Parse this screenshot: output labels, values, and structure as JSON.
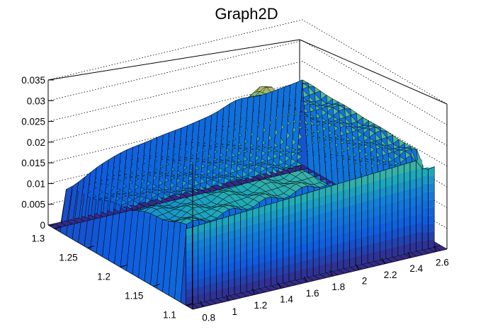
{
  "chart_data": {
    "type": "surface",
    "title": "Graph2D",
    "xlabel": "",
    "ylabel": "",
    "zlabel": "",
    "xlim": [
      0.72,
      2.68
    ],
    "ylim": [
      1.09,
      1.31
    ],
    "zlim": [
      0,
      0.035
    ],
    "x_ticks": [
      "0.8",
      "1",
      "1.2",
      "1.4",
      "1.6",
      "1.8",
      "2",
      "2.2",
      "2.4",
      "2.6"
    ],
    "y_ticks": [
      "1.1",
      "1.15",
      "1.2",
      "1.25",
      "1.3"
    ],
    "z_ticks": [
      "0",
      "0.005",
      "0.01",
      "0.015",
      "0.02",
      "0.025",
      "0.03",
      "0.035"
    ],
    "grid": true,
    "colormap": "viridis-like",
    "colors": {
      "low": "#352a87",
      "mid": "#1fa9b8",
      "high": "#f9fb0e",
      "mesh": "#000000"
    },
    "support": {
      "x_range": [
        0.75,
        2.6
      ],
      "y_range": [
        1.1,
        1.3
      ]
    },
    "surface_samples": [
      {
        "x": 0.8,
        "y": 1.1,
        "z": 0.0205
      },
      {
        "x": 0.8,
        "y": 1.3,
        "z": 0.0115
      },
      {
        "x": 1.2,
        "y": 1.2,
        "z": 0.0225
      },
      {
        "x": 1.6,
        "y": 1.2,
        "z": 0.024
      },
      {
        "x": 2.0,
        "y": 1.1,
        "z": 0.0205
      },
      {
        "x": 2.0,
        "y": 1.3,
        "z": 0.0245
      },
      {
        "x": 2.2,
        "y": 1.25,
        "z": 0.032
      },
      {
        "x": 2.5,
        "y": 1.1,
        "z": 0.021
      },
      {
        "x": 2.5,
        "y": 1.3,
        "z": 0.022
      }
    ]
  }
}
